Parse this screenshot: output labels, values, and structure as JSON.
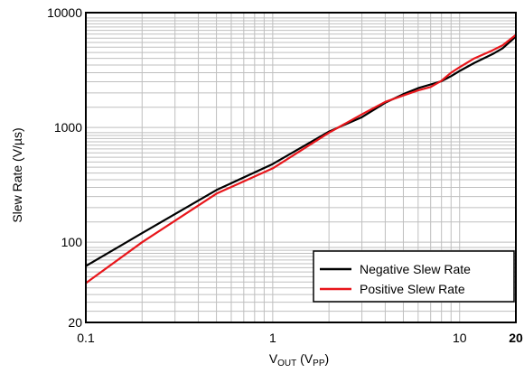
{
  "chart_data": {
    "type": "line",
    "x_scale": "log",
    "y_scale": "log",
    "xlim": [
      0.1,
      20
    ],
    "ylim": [
      20,
      10000
    ],
    "x_ticks": [
      {
        "value": 0.1,
        "label": "0.1",
        "bold": false
      },
      {
        "value": 1,
        "label": "1",
        "bold": false
      },
      {
        "value": 10,
        "label": "10",
        "bold": false
      },
      {
        "value": 20,
        "label": "20",
        "bold": true
      }
    ],
    "y_ticks": [
      {
        "value": 20,
        "label": "20"
      },
      {
        "value": 100,
        "label": "100"
      },
      {
        "value": 1000,
        "label": "1000"
      },
      {
        "value": 10000,
        "label": "10000"
      }
    ],
    "xlabel": {
      "main": "V",
      "sub1": "OUT",
      "mid": " (V",
      "sub2": "PP",
      "end": ")"
    },
    "ylabel": "Slew Rate (V/µs)",
    "grid": true,
    "legend_position": "bottom-right",
    "series": [
      {
        "name": "Negative Slew Rate",
        "color": "#000000",
        "x": [
          0.1,
          0.2,
          0.5,
          1,
          2,
          3,
          4,
          5,
          6,
          7,
          8,
          9,
          10,
          12,
          15,
          17,
          20
        ],
        "y": [
          62,
          120,
          285,
          480,
          920,
          1230,
          1640,
          1950,
          2200,
          2370,
          2530,
          2800,
          3100,
          3650,
          4350,
          4900,
          6200
        ]
      },
      {
        "name": "Positive Slew Rate",
        "color": "#e8161b",
        "x": [
          0.1,
          0.2,
          0.5,
          1,
          2,
          3,
          4,
          5,
          6,
          7,
          8,
          9,
          10,
          12,
          15,
          17,
          20
        ],
        "y": [
          44,
          100,
          265,
          440,
          900,
          1300,
          1670,
          1900,
          2100,
          2250,
          2550,
          3000,
          3350,
          4000,
          4700,
          5200,
          6400
        ]
      }
    ]
  }
}
